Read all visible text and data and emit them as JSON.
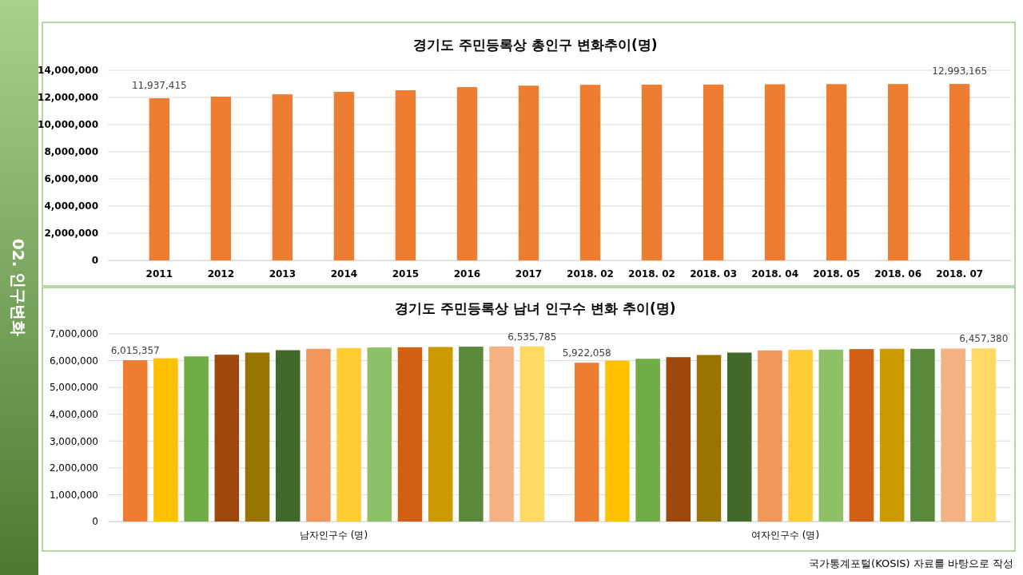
{
  "chart_data": [
    {
      "type": "bar",
      "title": "경기도 주민등록상 총인구 변화추이(명)",
      "categories": [
        "2011",
        "2012",
        "2013",
        "2014",
        "2015",
        "2016",
        "2017",
        "2018. 02",
        "2018. 02",
        "2018. 03",
        "2018. 04",
        "2018. 05",
        "2018. 06",
        "2018. 07"
      ],
      "values": [
        11937415,
        12060000,
        12230000,
        12410000,
        12530000,
        12760000,
        12870000,
        12930000,
        12940000,
        12950000,
        12970000,
        12980000,
        12990000,
        12993165
      ],
      "value_labels": [
        "11,937,415",
        null,
        null,
        null,
        null,
        null,
        null,
        null,
        null,
        null,
        null,
        null,
        null,
        "12,993,165"
      ],
      "color": "#ed7d31",
      "ylim": [
        0,
        14000000
      ],
      "yticks": [
        0,
        {
          "value": 2000000,
          "label": "2,000,000"
        },
        {
          "value": 4000000,
          "label": "4,000,000"
        },
        {
          "value": 6000000,
          "label": "6,000,000"
        },
        {
          "value": 8000000,
          "label": "8,000,000"
        },
        {
          "value": 10000000,
          "label": "10,000,000"
        },
        {
          "value": 12000000,
          "label": "12,000,000"
        },
        {
          "value": 14000000,
          "label": "14,000,000"
        }
      ],
      "grid": "y",
      "annotations": [
        "02. 인구변화"
      ]
    },
    {
      "type": "bar",
      "title": "경기도 주민등록상 남녀 인구수 변화 추이(명)",
      "categories": [
        "남자인구수 (명)",
        "여자인구수 (명)"
      ],
      "series": [
        {
          "color": "#ed7d31",
          "values": [
            6015357,
            5922058
          ],
          "value_labels": [
            "6,015,357",
            "5,922,058"
          ]
        },
        {
          "color": "#ffc000",
          "values": [
            6090000,
            6000000
          ]
        },
        {
          "color": "#70ad47",
          "values": [
            6160000,
            6070000
          ]
        },
        {
          "color": "#9e480e",
          "values": [
            6220000,
            6130000
          ]
        },
        {
          "color": "#997300",
          "values": [
            6300000,
            6210000
          ]
        },
        {
          "color": "#43682b",
          "values": [
            6390000,
            6300000
          ]
        },
        {
          "color": "#f1975a",
          "values": [
            6440000,
            6380000
          ]
        },
        {
          "color": "#ffcd33",
          "values": [
            6470000,
            6400000
          ]
        },
        {
          "color": "#8cc168",
          "values": [
            6490000,
            6410000
          ]
        },
        {
          "color": "#d26012",
          "values": [
            6500000,
            6430000
          ]
        },
        {
          "color": "#cc9a00",
          "values": [
            6510000,
            6440000
          ]
        },
        {
          "color": "#5a8a39",
          "values": [
            6520000,
            6440000
          ]
        },
        {
          "color": "#f4b183",
          "values": [
            6530000,
            6450000
          ]
        },
        {
          "color": "#ffd966",
          "values": [
            6535785,
            6457380
          ],
          "value_labels": [
            "6,535,785",
            "6,457,380"
          ]
        }
      ],
      "ylim": [
        0,
        7000000
      ],
      "yticks": [
        0,
        {
          "value": 1000000,
          "label": "1,000,000"
        },
        {
          "value": 2000000,
          "label": "2,000,000"
        },
        {
          "value": 3000000,
          "label": "3,000,000"
        },
        {
          "value": 4000000,
          "label": "4,000,000"
        },
        {
          "value": 5000000,
          "label": "5,000,000"
        },
        {
          "value": 6000000,
          "label": "6,000,000"
        },
        {
          "value": 7000000,
          "label": "7,000,000"
        }
      ],
      "grid": "y",
      "annotations": [
        "국가통계포털(KOSIS) 자료를 바탕으로 작성"
      ]
    }
  ]
}
